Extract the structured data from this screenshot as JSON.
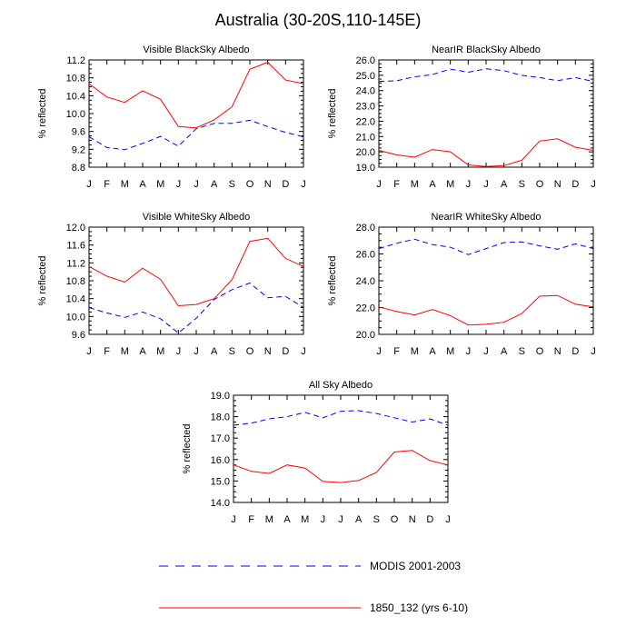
{
  "figure": {
    "title": "Australia (30-20S,110-145E)",
    "ylabel": "% reflected",
    "months": [
      "J",
      "F",
      "M",
      "A",
      "M",
      "J",
      "J",
      "A",
      "S",
      "O",
      "N",
      "D",
      "J"
    ]
  },
  "legend": {
    "modis_label": "MODIS 2001-2003",
    "model_label": "1850_132 (yrs 6-10)"
  },
  "colors": {
    "modis": "#0000ff",
    "model": "#ff0000"
  },
  "chart_data": [
    {
      "type": "line",
      "title": "Visible BlackSky Albedo",
      "ylabel": "% reflected",
      "categories": [
        "J",
        "F",
        "M",
        "A",
        "M",
        "J",
        "J",
        "A",
        "S",
        "O",
        "N",
        "D",
        "J"
      ],
      "ylim": [
        8.8,
        11.2
      ],
      "yticks": [
        8.8,
        9.2,
        9.6,
        10.0,
        10.4,
        10.8,
        11.2
      ],
      "ytick_labels": [
        "8.8",
        "9.2",
        "9.6",
        "10.0",
        "10.4",
        "10.8",
        "11.2"
      ],
      "series": [
        {
          "name": "MODIS 2001-2003",
          "values": [
            9.48,
            9.24,
            9.19,
            9.33,
            9.49,
            9.27,
            9.66,
            9.78,
            9.78,
            9.85,
            9.71,
            9.58,
            9.48
          ]
        },
        {
          "name": "1850_132 (yrs 6-10)",
          "values": [
            10.67,
            10.37,
            10.25,
            10.51,
            10.32,
            9.71,
            9.68,
            9.86,
            10.15,
            10.99,
            11.15,
            10.75,
            10.67
          ]
        }
      ]
    },
    {
      "type": "line",
      "title": "NearIR BlackSky Albedo",
      "ylabel": "% reflected",
      "categories": [
        "J",
        "F",
        "M",
        "A",
        "M",
        "J",
        "J",
        "A",
        "S",
        "O",
        "N",
        "D",
        "J"
      ],
      "ylim": [
        19.0,
        26.0
      ],
      "yticks": [
        19.0,
        20.0,
        21.0,
        22.0,
        23.0,
        24.0,
        25.0,
        26.0
      ],
      "ytick_labels": [
        "19.0",
        "20.0",
        "21.0",
        "22.0",
        "23.0",
        "24.0",
        "25.0",
        "26.0"
      ],
      "series": [
        {
          "name": "MODIS 2001-2003",
          "values": [
            24.6,
            24.65,
            24.9,
            25.05,
            25.4,
            25.2,
            25.42,
            25.3,
            25.0,
            24.85,
            24.65,
            24.85,
            24.6
          ]
        },
        {
          "name": "1850_132 (yrs 6-10)",
          "values": [
            20.1,
            19.8,
            19.65,
            20.15,
            20.0,
            19.15,
            19.05,
            19.1,
            19.45,
            20.7,
            20.85,
            20.3,
            20.1
          ]
        }
      ]
    },
    {
      "type": "line",
      "title": "Visible WhiteSky Albedo",
      "ylabel": "% reflected",
      "categories": [
        "J",
        "F",
        "M",
        "A",
        "M",
        "J",
        "J",
        "A",
        "S",
        "O",
        "N",
        "D",
        "J"
      ],
      "ylim": [
        9.6,
        12.0
      ],
      "yticks": [
        9.6,
        10.0,
        10.4,
        10.8,
        11.2,
        11.6,
        12.0
      ],
      "ytick_labels": [
        "9.6",
        "10.0",
        "10.4",
        "10.8",
        "11.2",
        "11.6",
        "12.0"
      ],
      "series": [
        {
          "name": "MODIS 2001-2003",
          "values": [
            10.2,
            10.08,
            9.98,
            10.1,
            9.95,
            9.63,
            9.96,
            10.38,
            10.6,
            10.75,
            10.42,
            10.45,
            10.2
          ]
        },
        {
          "name": "1850_132 (yrs 6-10)",
          "values": [
            11.12,
            10.9,
            10.77,
            11.08,
            10.83,
            10.24,
            10.27,
            10.4,
            10.82,
            11.68,
            11.75,
            11.3,
            11.12
          ]
        }
      ]
    },
    {
      "type": "line",
      "title": "NearIR WhiteSky Albedo",
      "ylabel": "% reflected",
      "categories": [
        "J",
        "F",
        "M",
        "A",
        "M",
        "J",
        "J",
        "A",
        "S",
        "O",
        "N",
        "D",
        "J"
      ],
      "ylim": [
        20.0,
        28.0
      ],
      "yticks": [
        20.0,
        22.0,
        24.0,
        26.0,
        28.0
      ],
      "ytick_labels": [
        "20.0",
        "22.0",
        "24.0",
        "26.0",
        "28.0"
      ],
      "series": [
        {
          "name": "MODIS 2001-2003",
          "values": [
            26.4,
            26.8,
            27.1,
            26.7,
            26.5,
            25.95,
            26.4,
            26.85,
            26.9,
            26.6,
            26.35,
            26.75,
            26.4
          ]
        },
        {
          "name": "1850_132 (yrs 6-10)",
          "values": [
            22.05,
            21.7,
            21.45,
            21.85,
            21.4,
            20.7,
            20.75,
            20.9,
            21.55,
            22.85,
            22.9,
            22.25,
            22.05
          ]
        }
      ]
    },
    {
      "type": "line",
      "title": "All Sky Albedo",
      "ylabel": "% reflected",
      "categories": [
        "J",
        "F",
        "M",
        "A",
        "M",
        "J",
        "J",
        "A",
        "S",
        "O",
        "N",
        "D",
        "J"
      ],
      "ylim": [
        14.0,
        19.0
      ],
      "yticks": [
        14.0,
        15.0,
        16.0,
        17.0,
        18.0,
        19.0
      ],
      "ytick_labels": [
        "14.0",
        "15.0",
        "16.0",
        "17.0",
        "18.0",
        "19.0"
      ],
      "series": [
        {
          "name": "MODIS 2001-2003",
          "values": [
            17.6,
            17.7,
            17.9,
            18.0,
            18.2,
            17.95,
            18.25,
            18.28,
            18.15,
            17.95,
            17.75,
            17.9,
            17.6
          ]
        },
        {
          "name": "1850_132 (yrs 6-10)",
          "values": [
            15.75,
            15.45,
            15.35,
            15.75,
            15.6,
            14.98,
            14.93,
            15.02,
            15.4,
            16.35,
            16.43,
            15.95,
            15.75
          ]
        }
      ]
    }
  ]
}
